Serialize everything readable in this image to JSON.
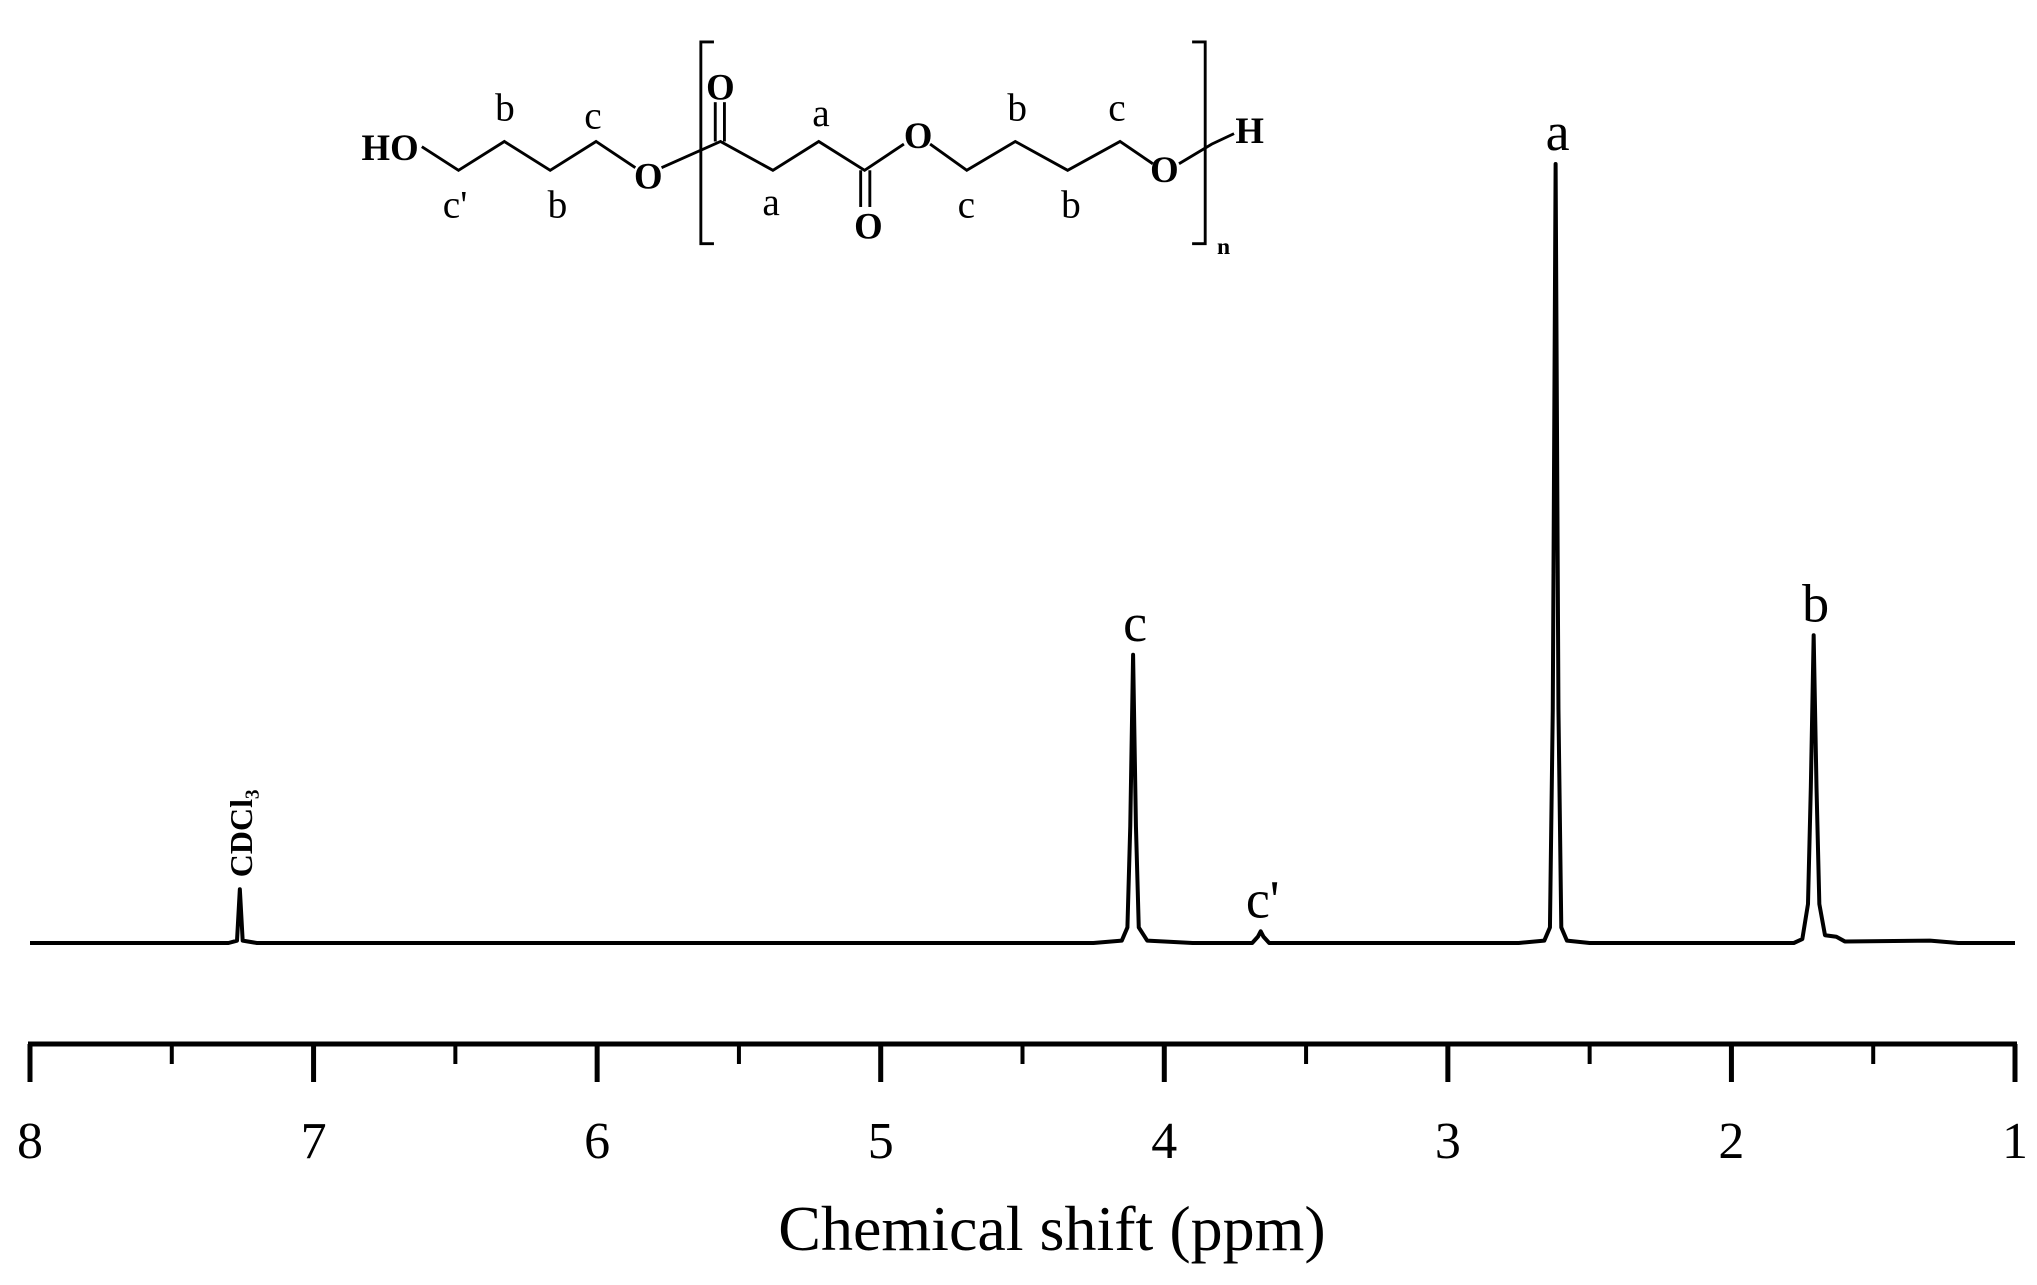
{
  "chart_data": {
    "type": "line",
    "xlabel": "Chemical shift (ppm)",
    "xlim": [
      8,
      1
    ],
    "xticks": [
      8,
      7,
      6,
      5,
      4,
      3,
      2,
      1
    ],
    "xminorticks": [
      7.5,
      6.5,
      5.5,
      4.5,
      3.5,
      2.5,
      1.5
    ],
    "ylim": [
      0,
      100
    ],
    "color": "#000000",
    "x": [
      8.0,
      7.3,
      7.27,
      7.26,
      7.25,
      7.2,
      4.25,
      4.15,
      4.13,
      4.12,
      4.11,
      4.1,
      4.09,
      4.06,
      4.0,
      3.9,
      3.69,
      3.67,
      3.66,
      3.65,
      3.63,
      2.75,
      2.66,
      2.64,
      2.63,
      2.62,
      2.61,
      2.6,
      2.58,
      2.5,
      1.78,
      1.75,
      1.73,
      1.72,
      1.71,
      1.7,
      1.69,
      1.67,
      1.63,
      1.6,
      1.3,
      1.2,
      1.0
    ],
    "values": [
      0,
      0,
      0.3,
      6.9,
      0.3,
      0,
      0,
      0.3,
      2,
      15,
      37,
      15,
      2,
      0.3,
      0.2,
      0,
      0,
      0.8,
      1.5,
      0.8,
      0,
      0,
      0.3,
      2,
      30,
      100,
      30,
      2,
      0.3,
      0,
      0,
      0.5,
      5,
      20,
      39.5,
      20,
      5,
      1,
      0.8,
      0.2,
      0.3,
      0,
      0
    ],
    "annotations": [
      {
        "text": "CDCl₃",
        "x": 7.26
      },
      {
        "text": "c",
        "x": 4.11
      },
      {
        "text": "c'",
        "x": 3.66
      },
      {
        "text": "a",
        "x": 2.62
      },
      {
        "text": "b",
        "x": 1.71
      }
    ]
  },
  "structure": {
    "labels": [
      "HO",
      "b",
      "c",
      "c'",
      "b",
      "O",
      "O",
      "a",
      "a",
      "O",
      "O",
      "b",
      "c",
      "c",
      "b",
      "O",
      "H",
      "n"
    ]
  }
}
